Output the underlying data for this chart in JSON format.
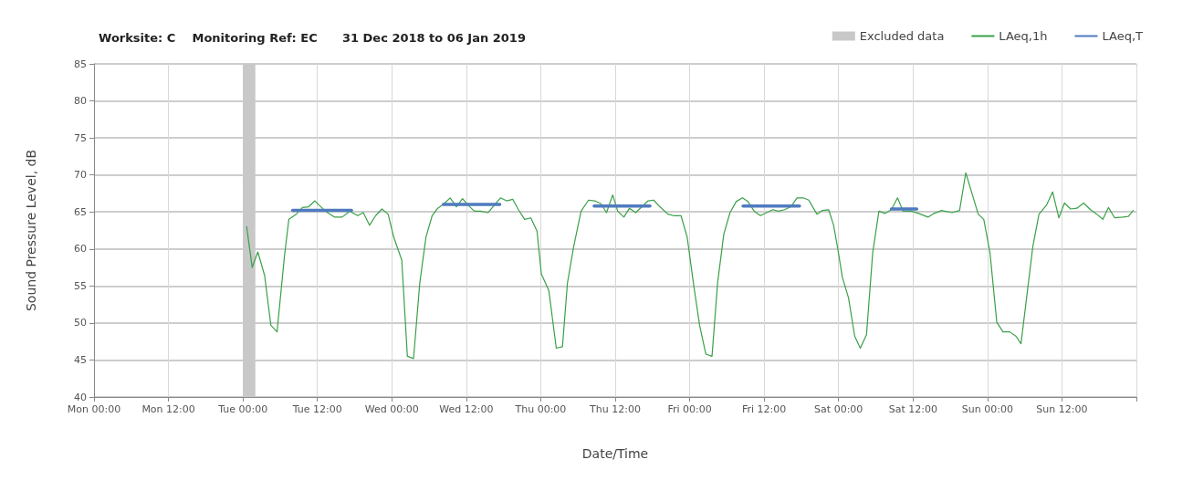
{
  "chart_data": {
    "type": "line",
    "title": "Worksite: C    Monitoring Ref: EC      31 Dec 2018 to 06 Jan 2019",
    "xlabel": "Date/Time",
    "ylabel": "Sound Pressure Level, dB",
    "xlim": [
      "2018-12-31T00:00",
      "2019-01-07T00:00"
    ],
    "xticks": [
      {
        "value": "2018-12-31T00:00",
        "label": "Mon 00:00"
      },
      {
        "value": "2018-12-31T12:00",
        "label": "Mon 12:00"
      },
      {
        "value": "2019-01-01T00:00",
        "label": "Tue 00:00"
      },
      {
        "value": "2019-01-01T12:00",
        "label": "Tue 12:00"
      },
      {
        "value": "2019-01-02T00:00",
        "label": "Wed 00:00"
      },
      {
        "value": "2019-01-02T12:00",
        "label": "Wed 12:00"
      },
      {
        "value": "2019-01-03T00:00",
        "label": "Thu 00:00"
      },
      {
        "value": "2019-01-03T12:00",
        "label": "Thu 12:00"
      },
      {
        "value": "2019-01-04T00:00",
        "label": "Fri 00:00"
      },
      {
        "value": "2019-01-04T12:00",
        "label": "Fri 12:00"
      },
      {
        "value": "2019-01-05T00:00",
        "label": "Sat 00:00"
      },
      {
        "value": "2019-01-05T12:00",
        "label": "Sat 12:00"
      },
      {
        "value": "2019-01-06T00:00",
        "label": "Sun 00:00"
      },
      {
        "value": "2019-01-06T12:00",
        "label": "Sun 12:00"
      },
      {
        "value": "2019-01-07T00:00",
        "label": null
      }
    ],
    "ylim": [
      40,
      85
    ],
    "yticks": [
      40,
      45,
      50,
      55,
      60,
      65,
      70,
      75,
      80,
      85
    ],
    "grid": true,
    "legend": "top right",
    "marker": "none",
    "line_style": "solid",
    "bands": [
      {
        "axis": "x",
        "from": "2019-01-01T00:00",
        "to": "2019-01-01T02:00",
        "label": "Excluded data",
        "color": "#c8c8c8"
      }
    ],
    "series": [
      {
        "name": "LAeq,1h",
        "color": "#3aa048",
        "x": [
          "2019-01-01T00:36",
          "2019-01-01T01:30",
          "2019-01-01T02:24",
          "2019-01-01T03:30",
          "2019-01-01T04:30",
          "2019-01-01T05:30",
          "2019-01-01T06:42",
          "2019-01-01T07:24",
          "2019-01-01T08:36",
          "2019-01-01T09:36",
          "2019-01-01T10:36",
          "2019-01-01T11:36",
          "2019-01-01T12:18",
          "2019-01-01T13:18",
          "2019-01-01T14:48",
          "2019-01-01T16:00",
          "2019-01-01T17:12",
          "2019-01-01T18:30",
          "2019-01-01T19:24",
          "2019-01-01T20:24",
          "2019-01-01T21:24",
          "2019-01-01T22:24",
          "2019-01-01T23:24",
          "2019-01-02T00:18",
          "2019-01-02T01:36",
          "2019-01-02T02:30",
          "2019-01-02T03:30",
          "2019-01-02T04:30",
          "2019-01-02T05:30",
          "2019-01-02T06:30",
          "2019-01-02T07:24",
          "2019-01-02T08:24",
          "2019-01-02T09:24",
          "2019-01-02T10:24",
          "2019-01-02T11:24",
          "2019-01-02T12:18",
          "2019-01-02T13:18",
          "2019-01-02T14:18",
          "2019-01-02T15:30",
          "2019-01-02T16:30",
          "2019-01-02T17:30",
          "2019-01-02T18:30",
          "2019-01-02T19:30",
          "2019-01-02T20:24",
          "2019-01-02T21:24",
          "2019-01-02T22:24",
          "2019-01-02T23:24",
          "2019-01-03T00:06",
          "2019-01-03T01:18",
          "2019-01-03T02:30",
          "2019-01-03T03:30",
          "2019-01-03T04:18",
          "2019-01-03T05:18",
          "2019-01-03T06:30",
          "2019-01-03T07:42",
          "2019-01-03T08:42",
          "2019-01-03T09:42",
          "2019-01-03T10:36",
          "2019-01-03T11:36",
          "2019-01-03T12:24",
          "2019-01-03T13:24",
          "2019-01-03T14:18",
          "2019-01-03T15:18",
          "2019-01-03T16:18",
          "2019-01-03T17:18",
          "2019-01-03T18:12",
          "2019-01-03T19:12",
          "2019-01-03T20:30",
          "2019-01-03T21:24",
          "2019-01-03T22:36",
          "2019-01-03T23:36",
          "2019-01-04T00:36",
          "2019-01-04T01:36",
          "2019-01-04T02:36",
          "2019-01-04T03:36",
          "2019-01-04T04:30",
          "2019-01-04T05:30",
          "2019-01-04T06:30",
          "2019-01-04T07:30",
          "2019-01-04T08:30",
          "2019-01-04T09:24",
          "2019-01-04T10:24",
          "2019-01-04T11:24",
          "2019-01-04T12:24",
          "2019-01-04T13:24",
          "2019-01-04T14:18",
          "2019-01-04T15:18",
          "2019-01-04T16:18",
          "2019-01-04T17:18",
          "2019-01-04T18:18",
          "2019-01-04T19:12",
          "2019-01-04T20:30",
          "2019-01-04T21:24",
          "2019-01-04T22:24",
          "2019-01-04T23:12",
          "2019-01-04T23:54",
          "2019-01-05T00:36",
          "2019-01-05T01:36",
          "2019-01-05T02:36",
          "2019-01-05T03:30",
          "2019-01-05T04:30",
          "2019-01-05T05:30",
          "2019-01-05T06:30",
          "2019-01-05T07:30",
          "2019-01-05T08:30",
          "2019-01-05T09:30",
          "2019-01-05T10:24",
          "2019-01-05T11:42",
          "2019-01-05T12:54",
          "2019-01-05T14:24",
          "2019-01-05T15:24",
          "2019-01-05T16:36",
          "2019-01-05T18:18",
          "2019-01-05T19:30",
          "2019-01-05T20:30",
          "2019-01-05T21:30",
          "2019-01-05T22:30",
          "2019-01-05T23:24",
          "2019-01-06T00:24",
          "2019-01-06T01:30",
          "2019-01-06T02:30",
          "2019-01-06T03:36",
          "2019-01-06T04:36",
          "2019-01-06T05:24",
          "2019-01-06T06:18",
          "2019-01-06T07:18",
          "2019-01-06T08:18",
          "2019-01-06T09:30",
          "2019-01-06T10:30",
          "2019-01-06T11:30",
          "2019-01-06T12:24",
          "2019-01-06T13:24",
          "2019-01-06T14:24",
          "2019-01-06T15:30",
          "2019-01-06T16:36",
          "2019-01-06T17:36",
          "2019-01-06T18:36",
          "2019-01-06T19:30",
          "2019-01-06T20:30",
          "2019-01-06T21:48",
          "2019-01-06T22:42",
          "2019-01-06T23:30"
        ],
        "values": [
          63.0,
          57.5,
          59.6,
          56.4,
          49.7,
          48.8,
          59.1,
          64.0,
          64.7,
          65.6,
          65.7,
          66.5,
          65.9,
          65.1,
          64.3,
          64.3,
          65.1,
          64.5,
          64.9,
          63.2,
          64.5,
          65.4,
          64.7,
          61.6,
          58.5,
          45.5,
          45.2,
          55.4,
          61.6,
          64.5,
          65.5,
          66.1,
          66.9,
          65.7,
          66.8,
          65.9,
          65.1,
          65.1,
          64.9,
          65.9,
          66.9,
          66.5,
          66.7,
          65.3,
          64.0,
          64.2,
          62.4,
          56.6,
          54.4,
          46.6,
          46.8,
          55.4,
          60.3,
          65.1,
          66.6,
          66.5,
          66.1,
          64.9,
          67.3,
          65.1,
          64.3,
          65.5,
          64.9,
          65.7,
          66.5,
          66.6,
          65.7,
          64.7,
          64.5,
          64.5,
          61.6,
          55.4,
          49.7,
          45.8,
          45.5,
          55.4,
          62.0,
          64.9,
          66.4,
          66.9,
          66.4,
          65.1,
          64.5,
          64.9,
          65.3,
          65.1,
          65.3,
          65.7,
          66.9,
          66.9,
          66.6,
          64.7,
          65.2,
          65.3,
          63.2,
          59.9,
          56.2,
          53.4,
          48.2,
          46.6,
          48.4,
          59.5,
          65.1,
          64.8,
          65.3,
          66.9,
          65.1,
          65.1,
          64.8,
          64.3,
          64.8,
          65.2,
          64.9,
          65.2,
          70.3,
          67.5,
          64.7,
          64.0,
          59.5,
          50.1,
          48.8,
          48.8,
          48.2,
          47.2,
          53.4,
          60.3,
          64.7,
          65.9,
          67.7,
          64.2,
          66.2,
          65.4,
          65.5,
          66.2,
          65.3,
          64.7,
          64.0,
          65.6,
          64.2,
          64.3,
          64.4,
          65.2
        ]
      },
      {
        "name": "LAeq,T",
        "color": "#4f7bbf",
        "x": [
          "2019-01-01T08:00",
          "2019-01-01T17:30",
          "2019-01-02T00:00",
          "2019-01-02T08:18",
          "2019-01-02T17:24",
          "2019-01-03T00:00",
          "2019-01-03T08:36",
          "2019-01-03T17:36",
          "2019-01-04T00:00",
          "2019-01-04T08:36",
          "2019-01-04T17:42",
          "2019-01-05T00:00",
          "2019-01-05T08:30",
          "2019-01-05T12:36"
        ],
        "values": [
          65.2,
          65.2,
          null,
          66.0,
          66.0,
          null,
          65.8,
          65.8,
          null,
          65.8,
          65.8,
          null,
          65.4,
          65.4
        ]
      }
    ]
  }
}
